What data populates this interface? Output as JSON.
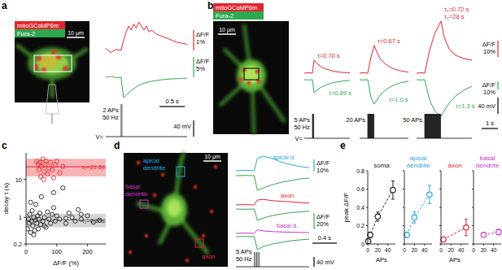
{
  "figure": {
    "panel_labels": [
      "a",
      "b",
      "c",
      "d",
      "e"
    ],
    "legend": [
      {
        "name": "mitoGCaMP6m",
        "color": "#e3262e"
      },
      {
        "name": "Fura-2",
        "color": "#2fa84f"
      }
    ],
    "dff_title": "ΔF/F",
    "v_label": "V=",
    "a": {
      "scale_bar": "10 μm",
      "traces": [
        {
          "color": "#e3262e",
          "x": [
            0,
            0.1,
            0.2,
            0.3,
            0.35,
            0.4,
            0.45,
            0.5,
            0.55,
            0.6,
            0.65,
            0.7,
            0.75,
            0.8,
            0.85,
            0.9,
            1.0,
            1.1,
            1.2,
            1.3,
            1.4,
            1.5,
            1.6
          ],
          "values": [
            0.1,
            -0.1,
            0.05,
            0,
            0.5,
            0.9,
            1.2,
            1.0,
            1.3,
            1.1,
            1.4,
            1.2,
            1.0,
            1.2,
            0.9,
            1.0,
            0.8,
            0.7,
            0.6,
            0.5,
            0.4,
            0.35,
            0.3
          ]
        },
        {
          "color": "#2fa84f",
          "x": [
            0,
            0.1,
            0.2,
            0.3,
            0.35,
            0.4,
            0.45,
            0.5,
            0.55,
            0.6,
            0.65,
            0.7,
            0.75,
            0.8,
            0.85,
            0.9,
            1.0,
            1.1,
            1.2,
            1.3,
            1.4,
            1.5,
            1.6
          ],
          "values": [
            0,
            0.2,
            -0.1,
            0,
            -5,
            -4.5,
            -3.8,
            -3.2,
            -2.8,
            -2.4,
            -2.0,
            -1.7,
            -1.5,
            -1.3,
            -1.1,
            -1.0,
            -0.8,
            -0.6,
            -0.5,
            -0.4,
            -0.35,
            -0.3,
            -0.2
          ]
        }
      ],
      "trace_scales": [
        {
          "value": 1,
          "label": "1%"
        },
        {
          "value": 5,
          "label": "5%"
        }
      ],
      "time_scale": {
        "value": 0.5,
        "label": "0.5 s"
      },
      "voltage_scale": {
        "value": 40,
        "label": "40 mV"
      },
      "stim": {
        "start": 0.3,
        "aps": 2,
        "hz": 50,
        "amplitude": 80,
        "label": [
          "2 APs",
          "50 Hz"
        ]
      }
    },
    "b": {
      "scale_bar": "10 μm",
      "groups": [
        {
          "traces": [
            {
              "color": "#e3262e",
              "x": [
                0,
                0.25,
                0.5,
                0.6,
                0.7,
                0.9,
                1.1,
                1.4,
                1.8,
                2.3,
                2.8
              ],
              "values": [
                0,
                0.3,
                0,
                8,
                7,
                5,
                3.6,
                2.3,
                1.2,
                0.5,
                0.2
              ],
              "tau": [
                "τ=0.70 s"
              ]
            },
            {
              "color": "#2fa84f",
              "x": [
                0,
                0.25,
                0.5,
                0.6,
                0.7,
                0.9,
                1.1,
                1.4,
                1.8,
                2.3,
                2.8
              ],
              "values": [
                0,
                -0.3,
                0,
                -16,
                -14,
                -11,
                -8.5,
                -6,
                -3.5,
                -1.8,
                -0.8
              ],
              "tau": [
                "τ=0.89 s"
              ]
            }
          ],
          "stim": {
            "start": 0.5,
            "aps": 5,
            "hz": 50,
            "amplitude": 60,
            "label": [
              "5 APs",
              "50 Hz"
            ]
          }
        },
        {
          "traces": [
            {
              "color": "#e3262e",
              "x": [
                0,
                0.25,
                0.5,
                0.7,
                0.9,
                1.1,
                1.3,
                1.6,
                2.0,
                2.5,
                3.0
              ],
              "values": [
                0,
                0.3,
                0,
                10,
                17,
                12,
                8.5,
                5.5,
                3,
                1.5,
                0.6
              ],
              "tau": [
                "τ=0.67 s"
              ]
            },
            {
              "color": "#2fa84f",
              "x": [
                0,
                0.25,
                0.5,
                0.7,
                0.9,
                1.1,
                1.3,
                1.6,
                2.0,
                2.5,
                3.0
              ],
              "values": [
                0,
                -0.3,
                0,
                -22,
                -30,
                -24,
                -18,
                -12.5,
                -7.5,
                -3.8,
                -1.8
              ],
              "tau": [
                "τ=1.0 s"
              ]
            }
          ],
          "stim": {
            "start": 0.5,
            "aps": 20,
            "hz": 50,
            "amplitude": 60,
            "label": [
              "20 APs"
            ]
          }
        },
        {
          "traces": [
            {
              "color": "#e3262e",
              "x": [
                0,
                0.25,
                0.5,
                0.8,
                1.1,
                1.5,
                1.7,
                2.0,
                2.4,
                2.9,
                3.4
              ],
              "values": [
                0,
                0.3,
                0,
                14,
                24,
                32,
                22,
                15,
                11,
                9,
                8
              ],
              "tau": [
                "τ₁=0.72 s",
                "τ₂=28 s"
              ]
            },
            {
              "color": "#2fa84f",
              "x": [
                0,
                0.25,
                0.5,
                0.8,
                1.1,
                1.5,
                1.7,
                2.0,
                2.4,
                2.9,
                3.4
              ],
              "values": [
                0,
                -0.3,
                0,
                -25,
                -38,
                -45,
                -38,
                -29,
                -20,
                -13,
                -8
              ],
              "tau": [
                "τ=1.3 s"
              ]
            }
          ],
          "stim": {
            "start": 0.5,
            "aps": 50,
            "hz": 50,
            "amplitude": 60,
            "label": [
              "50 APs"
            ]
          }
        }
      ],
      "trace_scales": [
        {
          "value": 10,
          "label": "10%"
        },
        {
          "value": 10,
          "label": "10%"
        }
      ],
      "time_scale": {
        "value": 1,
        "label": "1 s"
      },
      "voltage_scale": {
        "value": 40,
        "label": "40 mV"
      }
    },
    "d": {
      "scale_bar": "10 μm",
      "image_labels": [
        {
          "text": "apical dendrite",
          "color": "#27a9e1"
        },
        {
          "text": "basal dendrite",
          "color": "#cc33cc"
        },
        {
          "text": "axon",
          "color": "#e3262e"
        }
      ],
      "traces": [
        {
          "name": "apical d.",
          "color": "#27a9e1",
          "x": [
            0,
            0.15,
            0.3,
            0.35,
            0.45,
            0.6,
            0.75,
            0.9,
            1.05,
            1.2
          ],
          "values": [
            0,
            0.5,
            0,
            10,
            12,
            10,
            7,
            5,
            3.5,
            2.5
          ]
        },
        {
          "color": "#2fa84f",
          "x": [
            0,
            0.15,
            0.3,
            0.35,
            0.45,
            0.6,
            0.75,
            0.9,
            1.05,
            1.2
          ],
          "values": [
            0,
            0.3,
            0,
            -18,
            -15,
            -11,
            -8,
            -6,
            -4,
            -3
          ]
        },
        {
          "name": "axon",
          "color": "#e3262e",
          "x": [
            0,
            0.15,
            0.3,
            0.35,
            0.45,
            0.6,
            0.75,
            0.9,
            1.05,
            1.2
          ],
          "values": [
            0,
            0.3,
            0,
            4,
            4.5,
            3.5,
            3,
            2.5,
            2,
            1.5
          ]
        },
        {
          "color": "#2fa84f",
          "x": [
            0,
            0.15,
            0.3,
            0.35,
            0.45,
            0.6,
            0.75,
            0.9,
            1.05,
            1.2
          ],
          "values": [
            0,
            -0.3,
            0,
            -14,
            -11,
            -8,
            -6,
            -4.5,
            -3.5,
            -2.5
          ]
        },
        {
          "name": "basal d.",
          "color": "#cc33cc",
          "x": [
            0,
            0.15,
            0.3,
            0.35,
            0.45,
            0.6,
            0.75,
            0.9,
            1.05,
            1.2
          ],
          "values": [
            0,
            0.3,
            0,
            3,
            2,
            1.5,
            1.2,
            1,
            0.8,
            0.6
          ]
        },
        {
          "color": "#2fa84f",
          "x": [
            0,
            0.15,
            0.3,
            0.35,
            0.45,
            0.6,
            0.75,
            0.9,
            1.05,
            1.2
          ],
          "values": [
            0,
            0.3,
            0,
            -16,
            -12,
            -9,
            -7,
            -5,
            -4,
            -3
          ]
        }
      ],
      "trace_scales": [
        {
          "value": 10,
          "label": "10%"
        },
        {
          "value": 20,
          "label": "20%"
        }
      ],
      "time_scale": {
        "value": 0.4,
        "label": "0.4 s"
      },
      "voltage_scale": {
        "value": 40,
        "label": "40 mV"
      },
      "stim": {
        "start": 0.3,
        "aps": 5,
        "hz": 50,
        "amplitude": 60,
        "label": [
          "5 APs",
          "50 Hz"
        ]
      }
    }
  },
  "chart_data": [
    {
      "type": "scatter",
      "log": "y",
      "x_label": "ΔF/F (%)",
      "y_label": "decay τ (s)",
      "xlim": [
        0,
        260
      ],
      "ylim": [
        0.2,
        50
      ],
      "xticks": [
        0,
        100,
        200
      ],
      "yticks": [
        0.2,
        1,
        10
      ],
      "series": [
        {
          "color": "#e3262e",
          "marker": "circle",
          "x": [
            35,
            40,
            42,
            45,
            48,
            50,
            55,
            58,
            60,
            62,
            65,
            70,
            75,
            80,
            85,
            90,
            95,
            100,
            110,
            120
          ],
          "values": [
            30,
            25,
            18,
            28,
            12,
            22,
            35,
            10,
            16,
            25,
            30,
            14,
            20,
            28,
            18,
            11,
            24,
            30,
            15,
            22
          ]
        },
        {
          "color": "#222222",
          "marker": "circle",
          "x": [
            5,
            8,
            10,
            12,
            15,
            18,
            20,
            22,
            25,
            28,
            30,
            32,
            35,
            38,
            40,
            42,
            45,
            48,
            50,
            55,
            60,
            65,
            70,
            75,
            80,
            85,
            90,
            95,
            100,
            110,
            120,
            130,
            140,
            150,
            160,
            170,
            180,
            200,
            220,
            240,
            25,
            15,
            60,
            90,
            130,
            180
          ],
          "values": [
            0.5,
            0.9,
            0.7,
            1.2,
            0.4,
            0.8,
            1.5,
            0.6,
            1.0,
            0.45,
            0.85,
            2.2,
            0.7,
            1.1,
            0.5,
            0.9,
            1.3,
            0.65,
            3.5,
            0.8,
            1.0,
            0.55,
            1.4,
            0.9,
            0.7,
            1.2,
            4.5,
            0.8,
            1.1,
            0.9,
            6,
            0.7,
            1.3,
            1.0,
            0.8,
            1.6,
            0.9,
            1.1,
            0.75,
            0.85,
            0.35,
            2.5,
            0.6,
            1.8,
            0.95,
            1.2
          ]
        }
      ],
      "bands": [
        {
          "label": "τ₂=21.5s",
          "value": 21.5,
          "low": 12,
          "high": 35,
          "color": "#e3262e"
        },
        {
          "label": "τ₁=0.85s",
          "value": 0.85,
          "low": 0.55,
          "high": 1.25,
          "color": "#888888"
        }
      ]
    },
    {
      "type": "line",
      "title": "soma",
      "color": "#222222",
      "marker": "circle",
      "line_style": "dashed",
      "x": [
        1,
        5,
        20,
        50
      ],
      "values": [
        0.03,
        0.1,
        0.3,
        0.59
      ],
      "errors": [
        0.02,
        0.03,
        0.05,
        0.1
      ],
      "xlim": [
        0,
        55
      ],
      "ylim": [
        0,
        0.8
      ],
      "xticks": [
        0,
        20,
        40
      ],
      "yticks": [
        0,
        0.2,
        0.4,
        0.6,
        0.8
      ],
      "x_label": "APs",
      "y_label": "peak ΔF/F"
    },
    {
      "type": "line",
      "title": "apical dendrite",
      "color": "#27a9e1",
      "marker": "circle",
      "line_style": "dashed",
      "x": [
        5,
        20,
        50
      ],
      "values": [
        0.1,
        0.29,
        0.54
      ],
      "errors": [
        0.03,
        0.06,
        0.1
      ],
      "xlim": [
        0,
        55
      ],
      "ylim": [
        0,
        0.8
      ],
      "xticks": [
        0,
        20,
        40
      ],
      "yticks": [
        0,
        0.2,
        0.4,
        0.6,
        0.8
      ],
      "tick_labels": "x"
    },
    {
      "type": "line",
      "title": "axon",
      "color": "#e3262e",
      "marker": "circle",
      "line_style": "dashed",
      "x": [
        5,
        50
      ],
      "values": [
        0.05,
        0.18
      ],
      "errors": [
        0.02,
        0.09
      ],
      "xlim": [
        0,
        55
      ],
      "ylim": [
        0,
        0.8
      ],
      "xticks": [
        0,
        20,
        40
      ],
      "yticks": [
        0,
        0.2,
        0.4,
        0.6,
        0.8
      ],
      "x_label": "APs",
      "tick_labels": "x"
    },
    {
      "type": "line",
      "title": "basal dendrite",
      "color": "#cc33cc",
      "marker": "circle",
      "line_style": "dashed",
      "x": [
        20,
        50
      ],
      "values": [
        0.1,
        0.13
      ],
      "errors": [
        0.02,
        0.03
      ],
      "xlim": [
        0,
        55
      ],
      "ylim": [
        0,
        0.8
      ],
      "xticks": [
        0,
        20,
        40
      ],
      "yticks": [
        0,
        0.2,
        0.4,
        0.6,
        0.8
      ],
      "tick_labels": "x"
    }
  ]
}
